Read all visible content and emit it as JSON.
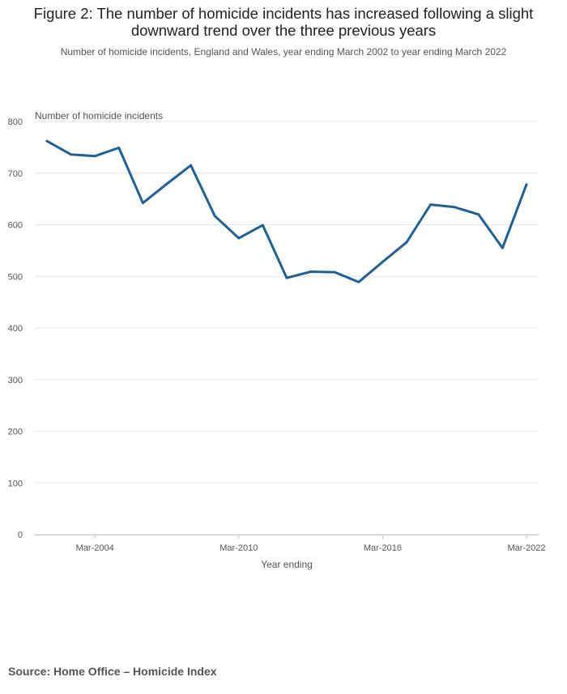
{
  "figure": {
    "title": "Figure 2: The number of homicide incidents has increased following a slight downward trend over the three previous years",
    "subtitle": "Number of homicide incidents, England and Wales, year ending March 2002 to year ending March 2022",
    "source": "Source: Home Office – Homicide Index"
  },
  "colors": {
    "line": "#206095",
    "grid": "#e6e6e6",
    "axis": "#bebebe",
    "text": "#555555"
  },
  "chart_data": {
    "type": "line",
    "title": "Figure 2: The number of homicide incidents has increased following a slight downward trend over the three previous years",
    "subtitle": "Number of homicide incidents, England and Wales, year ending March 2002 to year ending March 2022",
    "xlabel": "Year ending",
    "ylabel": "Number of homicide incidents",
    "x": [
      "Mar-2002",
      "Mar-2003",
      "Mar-2004",
      "Mar-2005",
      "Mar-2006",
      "Mar-2007",
      "Mar-2008",
      "Mar-2009",
      "Mar-2010",
      "Mar-2011",
      "Mar-2012",
      "Mar-2013",
      "Mar-2014",
      "Mar-2015",
      "Mar-2016",
      "Mar-2017",
      "Mar-2018",
      "Mar-2019",
      "Mar-2020",
      "Mar-2021",
      "Mar-2022"
    ],
    "x_ticks": [
      "Mar-2004",
      "Mar-2010",
      "Mar-2016",
      "Mar-2022"
    ],
    "y_ticks": [
      0,
      100,
      200,
      300,
      400,
      500,
      600,
      700,
      800
    ],
    "ylim": [
      0,
      800
    ],
    "grid": true,
    "legend": "none",
    "series": [
      {
        "values": [
          762,
          736,
          733,
          749,
          642,
          679,
          715,
          617,
          574,
          599,
          497,
          509,
          508,
          489,
          528,
          566,
          639,
          634,
          620,
          555,
          678
        ]
      }
    ]
  }
}
